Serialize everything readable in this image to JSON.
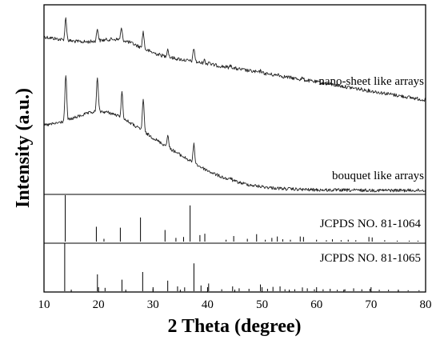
{
  "chart_data": {
    "type": "line",
    "xlabel": "2 Theta (degree)",
    "ylabel": "Intensity (a.u.)",
    "xlim": [
      10,
      80
    ],
    "xticks": [
      10,
      20,
      30,
      40,
      50,
      60,
      70,
      80
    ],
    "grid": false,
    "series": [
      {
        "name": "nano-sheet like arrays",
        "peaks": [
          [
            14.0,
            1.0
          ],
          [
            19.8,
            0.55
          ],
          [
            24.2,
            0.5
          ],
          [
            28.2,
            0.75
          ],
          [
            32.7,
            0.35
          ],
          [
            37.5,
            0.6
          ],
          [
            39.4,
            0.15
          ],
          [
            40.3,
            0.12
          ],
          [
            44.3,
            0.12
          ],
          [
            49.8,
            0.1
          ],
          [
            53.0,
            0.08
          ],
          [
            57.4,
            0.07
          ]
        ]
      },
      {
        "name": "bouquet like arrays",
        "peaks": [
          [
            14.0,
            1.0
          ],
          [
            19.8,
            0.75
          ],
          [
            24.3,
            0.55
          ],
          [
            28.2,
            0.7
          ],
          [
            32.7,
            0.25
          ],
          [
            37.5,
            0.4
          ],
          [
            44.3,
            0.05
          ]
        ]
      }
    ],
    "references": [
      {
        "name": "JCPDS NO. 81-1064",
        "lines": [
          [
            13.9,
            100
          ],
          [
            19.6,
            32
          ],
          [
            21.0,
            6
          ],
          [
            24.0,
            30
          ],
          [
            27.7,
            52
          ],
          [
            32.2,
            25
          ],
          [
            34.2,
            8
          ],
          [
            35.6,
            10
          ],
          [
            36.8,
            78
          ],
          [
            38.6,
            14
          ],
          [
            39.5,
            17
          ],
          [
            43.4,
            4
          ],
          [
            44.8,
            12
          ],
          [
            47.3,
            6
          ],
          [
            49.0,
            16
          ],
          [
            50.6,
            4
          ],
          [
            51.8,
            8
          ],
          [
            52.8,
            11
          ],
          [
            53.8,
            5
          ],
          [
            55.2,
            4
          ],
          [
            57.0,
            11
          ],
          [
            57.6,
            10
          ],
          [
            60.0,
            4
          ],
          [
            61.8,
            3
          ],
          [
            62.9,
            5
          ],
          [
            64.5,
            3
          ],
          [
            65.8,
            4
          ],
          [
            67.2,
            3
          ],
          [
            69.6,
            10
          ],
          [
            70.2,
            9
          ],
          [
            72.5,
            3
          ],
          [
            74.8,
            2
          ],
          [
            77.0,
            2
          ],
          [
            78.6,
            2
          ]
        ]
      },
      {
        "name": "JCPDS NO. 81-1065",
        "lines": [
          [
            13.8,
            100
          ],
          [
            19.8,
            35
          ],
          [
            21.2,
            7
          ],
          [
            24.3,
            24
          ],
          [
            28.1,
            40
          ],
          [
            30.0,
            5
          ],
          [
            32.7,
            22
          ],
          [
            34.5,
            10
          ],
          [
            35.8,
            8
          ],
          [
            37.5,
            58
          ],
          [
            38.8,
            12
          ],
          [
            40.2,
            16
          ],
          [
            42.6,
            4
          ],
          [
            44.6,
            10
          ],
          [
            45.8,
            6
          ],
          [
            47.6,
            5
          ],
          [
            49.7,
            14
          ],
          [
            51.0,
            5
          ],
          [
            52.0,
            9
          ],
          [
            53.3,
            10
          ],
          [
            54.2,
            4
          ],
          [
            56.0,
            4
          ],
          [
            57.4,
            8
          ],
          [
            58.3,
            6
          ],
          [
            59.6,
            4
          ],
          [
            61.2,
            4
          ],
          [
            62.5,
            5
          ],
          [
            63.8,
            3
          ],
          [
            65.2,
            4
          ],
          [
            66.8,
            6
          ],
          [
            68.3,
            4
          ],
          [
            69.8,
            5
          ],
          [
            71.5,
            3
          ],
          [
            73.2,
            3
          ],
          [
            75.0,
            2
          ],
          [
            76.8,
            2
          ],
          [
            78.8,
            2
          ]
        ]
      }
    ]
  }
}
